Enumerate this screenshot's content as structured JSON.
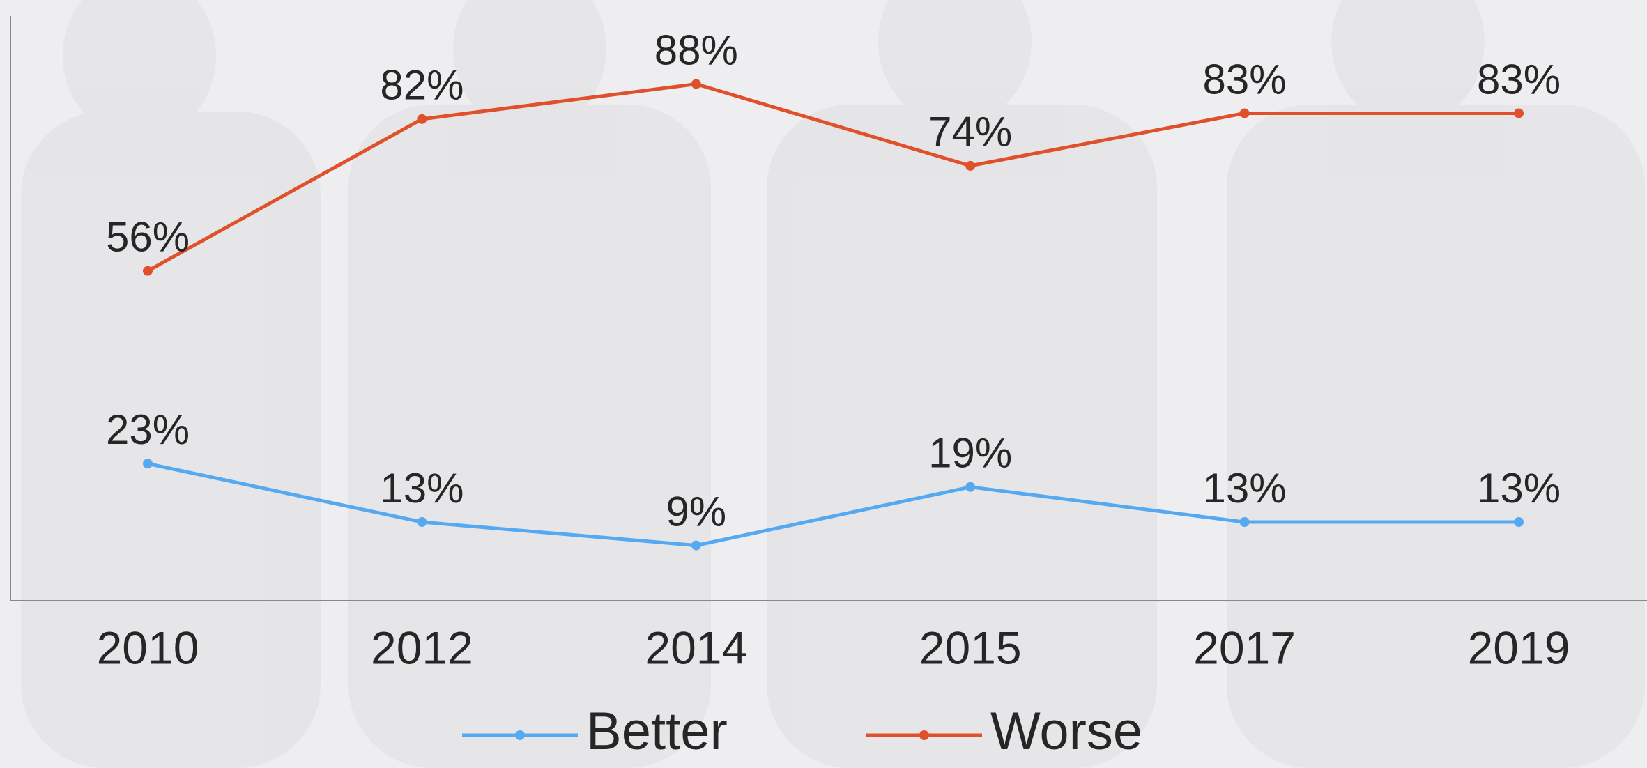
{
  "chart_data": {
    "type": "line",
    "categories": [
      "2010",
      "2012",
      "2014",
      "2015",
      "2017",
      "2019"
    ],
    "series": [
      {
        "name": "Better",
        "color": "#55a9f0",
        "values": [
          23,
          13,
          9,
          19,
          13,
          13
        ],
        "value_labels": [
          "23%",
          "13%",
          "9%",
          "19%",
          "13%",
          "13%"
        ]
      },
      {
        "name": "Worse",
        "color": "#e0502a",
        "values": [
          56,
          82,
          88,
          74,
          83,
          83
        ],
        "value_labels": [
          "56%",
          "82%",
          "88%",
          "74%",
          "83%",
          "83%"
        ]
      }
    ],
    "ylim": [
      0,
      100
    ]
  }
}
